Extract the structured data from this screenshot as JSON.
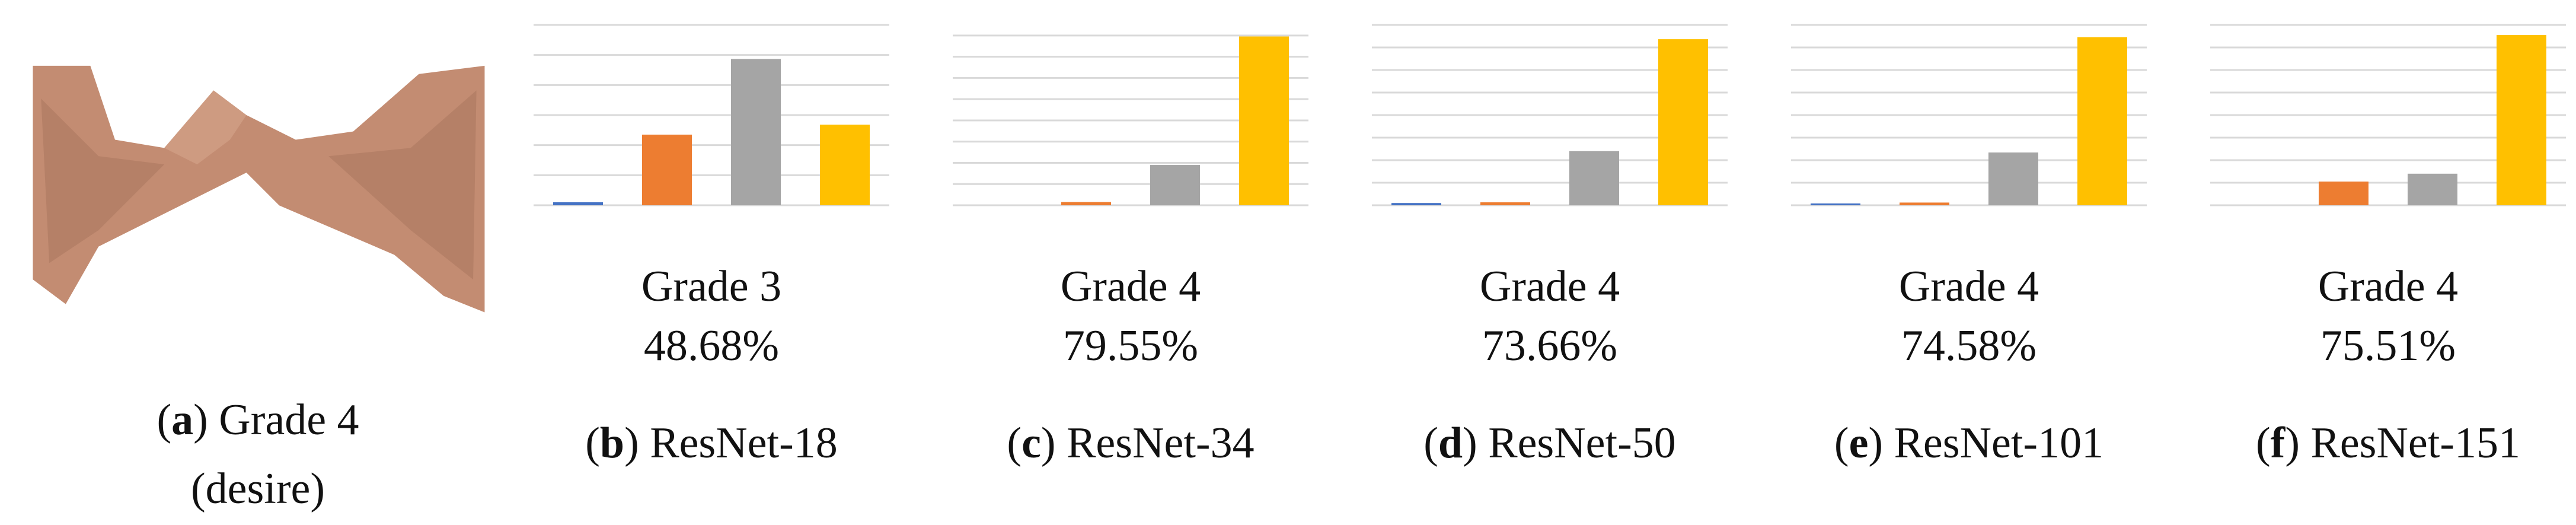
{
  "image_panel": {
    "label": "a",
    "caption": "Grade 4",
    "note": "(desire)"
  },
  "chart_data": [
    {
      "type": "bar",
      "label": "b",
      "caption": "ResNet-18",
      "prediction": "Grade 3",
      "confidence": "48.68%",
      "values": [
        1,
        23.5,
        48.68,
        26.8
      ],
      "colors": [
        "#4472c4",
        "#ed7d31",
        "#a5a5a5",
        "#ffc000"
      ],
      "ylim": [
        0,
        60
      ],
      "yticks": [
        0,
        10,
        20,
        30,
        40,
        50,
        60
      ],
      "grid": true
    },
    {
      "type": "bar",
      "label": "c",
      "caption": "ResNet-34",
      "prediction": "Grade 4",
      "confidence": "79.55%",
      "values": [
        0,
        1.5,
        19,
        79.55
      ],
      "colors": [
        "#4472c4",
        "#ed7d31",
        "#a5a5a5",
        "#ffc000"
      ],
      "ylim": [
        0,
        85
      ],
      "yticks": [
        0,
        10,
        20,
        30,
        40,
        50,
        60,
        70,
        80
      ],
      "grid": true
    },
    {
      "type": "bar",
      "label": "d",
      "caption": "ResNet-50",
      "prediction": "Grade 4",
      "confidence": "73.66%",
      "values": [
        1,
        1.3,
        24,
        73.66
      ],
      "colors": [
        "#4472c4",
        "#ed7d31",
        "#a5a5a5",
        "#ffc000"
      ],
      "ylim": [
        0,
        80
      ],
      "yticks": [
        0,
        10,
        20,
        30,
        40,
        50,
        60,
        70,
        80
      ],
      "grid": true
    },
    {
      "type": "bar",
      "label": "e",
      "caption": "ResNet-101",
      "prediction": "Grade 4",
      "confidence": "74.58%",
      "values": [
        0.8,
        1.2,
        23.4,
        74.58
      ],
      "colors": [
        "#4472c4",
        "#ed7d31",
        "#a5a5a5",
        "#ffc000"
      ],
      "ylim": [
        0,
        80
      ],
      "yticks": [
        0,
        10,
        20,
        30,
        40,
        50,
        60,
        70,
        80
      ],
      "grid": true
    },
    {
      "type": "bar",
      "label": "f",
      "caption": "ResNet-151",
      "prediction": "Grade 4",
      "confidence": "75.51%",
      "values": [
        0,
        10.5,
        14,
        75.51
      ],
      "colors": [
        "#4472c4",
        "#ed7d31",
        "#a5a5a5",
        "#ffc000"
      ],
      "ylim": [
        0,
        80
      ],
      "yticks": [
        0,
        10,
        20,
        30,
        40,
        50,
        60,
        70,
        80
      ],
      "grid": true
    }
  ]
}
